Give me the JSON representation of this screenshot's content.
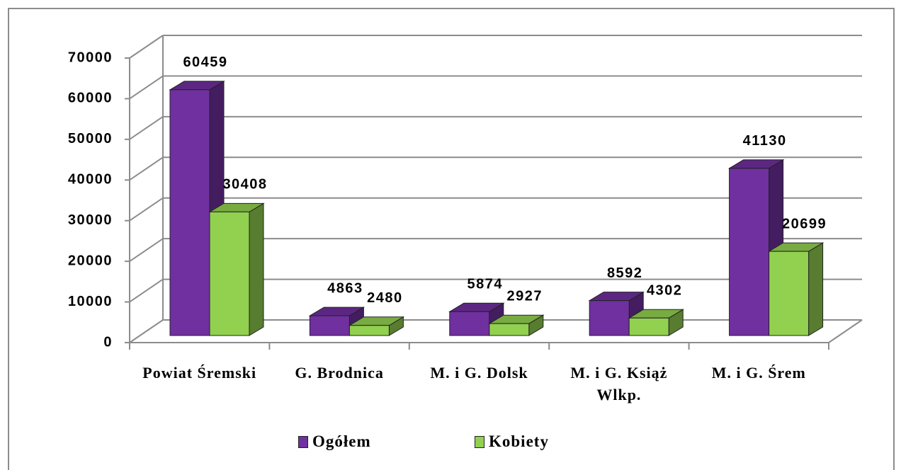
{
  "chart_data": {
    "type": "bar3d",
    "categories": [
      "Powiat Śremski",
      "G. Brodnica",
      "M. i G. Dolsk",
      "M. i G. Książ Wlkp.",
      "M. i G. Śrem"
    ],
    "series": [
      {
        "name": "Ogółem",
        "color": "#7030a0",
        "values": [
          60459,
          4863,
          5874,
          8592,
          41130
        ]
      },
      {
        "name": "Kobiety",
        "color": "#92d050",
        "values": [
          30408,
          2480,
          2927,
          4302,
          20699
        ]
      }
    ],
    "ylim": [
      0,
      70000
    ],
    "yticks": [
      0,
      10000,
      20000,
      30000,
      40000,
      50000,
      60000,
      70000
    ],
    "grid": true,
    "legend": "bottom"
  }
}
